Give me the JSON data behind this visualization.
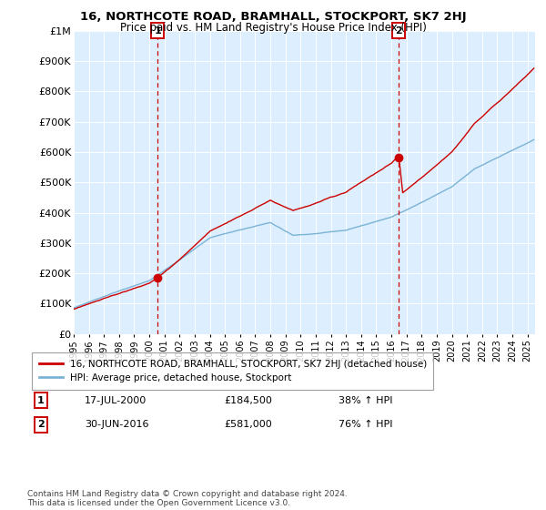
{
  "title": "16, NORTHCOTE ROAD, BRAMHALL, STOCKPORT, SK7 2HJ",
  "subtitle": "Price paid vs. HM Land Registry's House Price Index (HPI)",
  "ylim": [
    0,
    1000000
  ],
  "yticks": [
    0,
    100000,
    200000,
    300000,
    400000,
    500000,
    600000,
    700000,
    800000,
    900000,
    1000000
  ],
  "ytick_labels": [
    "£0",
    "£100K",
    "£200K",
    "£300K",
    "£400K",
    "£500K",
    "£600K",
    "£700K",
    "£800K",
    "£900K",
    "£1M"
  ],
  "hpi_color": "#7ab3d4",
  "price_color": "#cc0000",
  "vline_color": "#cc0000",
  "bg_color": "#ddeeff",
  "transaction1_x": 2000.54,
  "transaction1_y": 184500,
  "transaction2_x": 2016.49,
  "transaction2_y": 581000,
  "legend_label1": "16, NORTHCOTE ROAD, BRAMHALL, STOCKPORT, SK7 2HJ (detached house)",
  "legend_label2": "HPI: Average price, detached house, Stockport",
  "footnote": "Contains HM Land Registry data © Crown copyright and database right 2024.\nThis data is licensed under the Open Government Licence v3.0.",
  "table_row1": [
    "1",
    "17-JUL-2000",
    "£184,500",
    "38% ↑ HPI"
  ],
  "table_row2": [
    "2",
    "30-JUN-2016",
    "£581,000",
    "76% ↑ HPI"
  ],
  "xlim": [
    1995.0,
    2025.5
  ],
  "xticks": [
    1995,
    1996,
    1997,
    1998,
    1999,
    2000,
    2001,
    2002,
    2003,
    2004,
    2005,
    2006,
    2007,
    2008,
    2009,
    2010,
    2011,
    2012,
    2013,
    2014,
    2015,
    2016,
    2017,
    2018,
    2019,
    2020,
    2021,
    2022,
    2023,
    2024,
    2025
  ]
}
